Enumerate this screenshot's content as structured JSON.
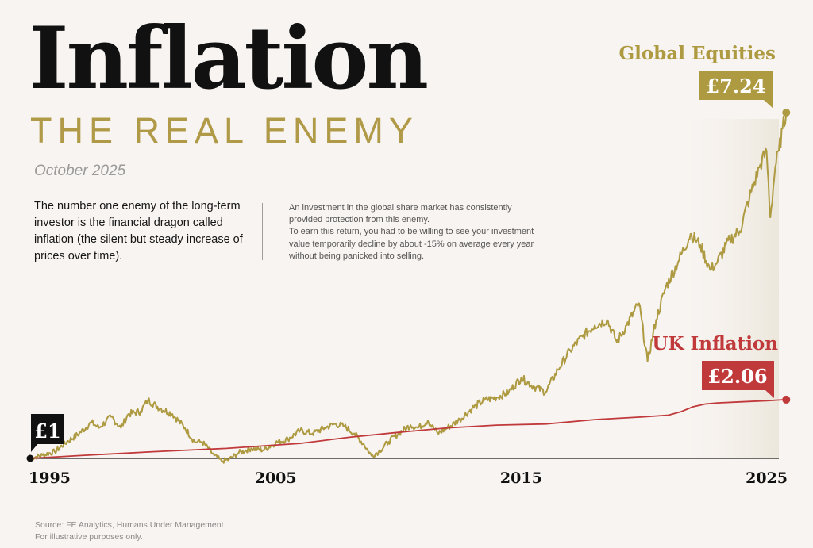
{
  "header": {
    "title": "Inflation",
    "subtitle": "THE REAL ENEMY",
    "date": "October 2025"
  },
  "intro": "The number one enemy of the long-term investor is the financial dragon called inflation (the silent but steady increase of prices over time).",
  "body": [
    "An investment in the global share market has consistently provided protection from this enemy.",
    "To earn this return, you had to be willing to see your investment value temporarily decline by about -15% on average every year without being panicked into selling."
  ],
  "source": [
    "Source: FE Analytics, Humans Under Management.",
    "For illustrative purposes only."
  ],
  "colors": {
    "equities": "#ad9a41",
    "inflation": "#c0393b",
    "start": "#111111",
    "background": "#f8f4f1"
  },
  "chart_data": {
    "type": "line",
    "xlim": [
      1995,
      2025.5
    ],
    "ylim": [
      0.75,
      7.55
    ],
    "x_ticks": [
      "1995",
      "2005",
      "2015",
      "2025"
    ],
    "start_label": "£1",
    "grid": false,
    "series": [
      {
        "name": "Global Equities",
        "end_label": "£7.24",
        "color": "#ad9a41",
        "points": [
          [
            1995.0,
            1.0
          ],
          [
            1995.5,
            1.06
          ],
          [
            1996.0,
            1.12
          ],
          [
            1996.5,
            1.3
          ],
          [
            1997.0,
            1.45
          ],
          [
            1997.5,
            1.65
          ],
          [
            1997.8,
            1.55
          ],
          [
            1998.3,
            1.75
          ],
          [
            1998.7,
            1.55
          ],
          [
            1999.0,
            1.8
          ],
          [
            1999.5,
            1.85
          ],
          [
            1999.8,
            2.05
          ],
          [
            2000.3,
            1.9
          ],
          [
            2000.8,
            1.8
          ],
          [
            2001.3,
            1.55
          ],
          [
            2001.7,
            1.3
          ],
          [
            2002.0,
            1.3
          ],
          [
            2002.5,
            1.05
          ],
          [
            2002.8,
            0.95
          ],
          [
            2003.1,
            0.98
          ],
          [
            2003.5,
            1.1
          ],
          [
            2004.0,
            1.18
          ],
          [
            2004.5,
            1.15
          ],
          [
            2005.0,
            1.28
          ],
          [
            2005.5,
            1.35
          ],
          [
            2006.0,
            1.5
          ],
          [
            2006.5,
            1.45
          ],
          [
            2007.0,
            1.55
          ],
          [
            2007.4,
            1.62
          ],
          [
            2007.8,
            1.58
          ],
          [
            2008.2,
            1.45
          ],
          [
            2008.6,
            1.25
          ],
          [
            2008.9,
            1.05
          ],
          [
            2009.2,
            1.12
          ],
          [
            2009.6,
            1.3
          ],
          [
            2010.0,
            1.45
          ],
          [
            2010.5,
            1.6
          ],
          [
            2010.8,
            1.55
          ],
          [
            2011.2,
            1.68
          ],
          [
            2011.6,
            1.45
          ],
          [
            2012.0,
            1.55
          ],
          [
            2012.5,
            1.7
          ],
          [
            2013.0,
            1.9
          ],
          [
            2013.5,
            2.05
          ],
          [
            2014.0,
            2.1
          ],
          [
            2014.5,
            2.2
          ],
          [
            2015.0,
            2.45
          ],
          [
            2015.5,
            2.3
          ],
          [
            2016.0,
            2.2
          ],
          [
            2016.5,
            2.6
          ],
          [
            2017.0,
            2.95
          ],
          [
            2017.5,
            3.2
          ],
          [
            2018.0,
            3.4
          ],
          [
            2018.5,
            3.5
          ],
          [
            2018.9,
            3.1
          ],
          [
            2019.3,
            3.4
          ],
          [
            2019.8,
            3.8
          ],
          [
            2020.15,
            2.75
          ],
          [
            2020.5,
            3.5
          ],
          [
            2020.9,
            4.1
          ],
          [
            2021.4,
            4.55
          ],
          [
            2021.9,
            5.05
          ],
          [
            2022.3,
            4.85
          ],
          [
            2022.7,
            4.4
          ],
          [
            2023.0,
            4.55
          ],
          [
            2023.5,
            4.95
          ],
          [
            2023.9,
            5.1
          ],
          [
            2024.3,
            5.7
          ],
          [
            2024.7,
            6.25
          ],
          [
            2025.0,
            6.55
          ],
          [
            2025.15,
            5.35
          ],
          [
            2025.35,
            6.25
          ],
          [
            2025.5,
            6.55
          ],
          [
            2025.65,
            6.95
          ],
          [
            2025.8,
            7.24
          ]
        ]
      },
      {
        "name": "UK Inflation",
        "end_label": "£2.06",
        "color": "#c0393b",
        "points": [
          [
            1995.0,
            1.0
          ],
          [
            1997.0,
            1.05
          ],
          [
            2000.0,
            1.12
          ],
          [
            2003.0,
            1.18
          ],
          [
            2006.0,
            1.27
          ],
          [
            2008.0,
            1.38
          ],
          [
            2010.0,
            1.47
          ],
          [
            2012.0,
            1.55
          ],
          [
            2014.0,
            1.6
          ],
          [
            2016.0,
            1.62
          ],
          [
            2018.0,
            1.7
          ],
          [
            2020.0,
            1.75
          ],
          [
            2021.0,
            1.78
          ],
          [
            2021.5,
            1.84
          ],
          [
            2022.0,
            1.93
          ],
          [
            2022.5,
            1.98
          ],
          [
            2023.0,
            2.0
          ],
          [
            2024.0,
            2.02
          ],
          [
            2025.0,
            2.04
          ],
          [
            2025.8,
            2.06
          ]
        ]
      }
    ]
  }
}
